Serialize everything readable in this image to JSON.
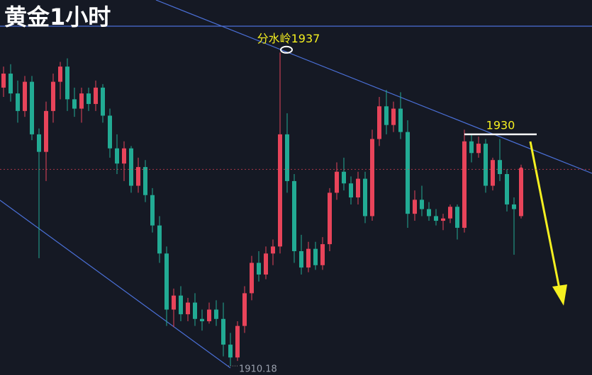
{
  "chart_data": {
    "type": "candlestick",
    "title": "黄金1小时",
    "up_color": "#e8445a",
    "down_color": "#22ab94",
    "ylim": [
      1909.4,
      1941.5
    ],
    "ohlc": [
      [
        1934.0,
        1935.8,
        1933.2,
        1935.2
      ],
      [
        1935.2,
        1936.0,
        1932.8,
        1933.5
      ],
      [
        1933.5,
        1934.6,
        1931.0,
        1932.0
      ],
      [
        1932.0,
        1935.0,
        1931.5,
        1934.5
      ],
      [
        1934.5,
        1935.0,
        1929.5,
        1930.0
      ],
      [
        1930.0,
        1930.5,
        1919.4,
        1928.5
      ],
      [
        1928.5,
        1932.8,
        1926.0,
        1932.0
      ],
      [
        1932.0,
        1935.2,
        1931.0,
        1934.5
      ],
      [
        1934.5,
        1936.2,
        1933.0,
        1935.8
      ],
      [
        1935.8,
        1936.5,
        1932.0,
        1933.0
      ],
      [
        1933.0,
        1934.0,
        1931.5,
        1932.2
      ],
      [
        1932.2,
        1934.0,
        1931.0,
        1933.5
      ],
      [
        1933.5,
        1934.0,
        1932.0,
        1932.6
      ],
      [
        1932.6,
        1934.6,
        1932.0,
        1934.0
      ],
      [
        1934.0,
        1934.3,
        1931.0,
        1931.6
      ],
      [
        1931.6,
        1932.2,
        1928.0,
        1928.8
      ],
      [
        1928.8,
        1930.0,
        1926.6,
        1927.5
      ],
      [
        1927.5,
        1929.4,
        1926.0,
        1928.8
      ],
      [
        1928.8,
        1929.0,
        1925.0,
        1925.6
      ],
      [
        1925.6,
        1928.0,
        1925.0,
        1927.2
      ],
      [
        1927.2,
        1927.8,
        1924.2,
        1924.8
      ],
      [
        1924.8,
        1925.4,
        1921.6,
        1922.2
      ],
      [
        1922.2,
        1923.0,
        1919.0,
        1919.8
      ],
      [
        1919.8,
        1920.4,
        1913.6,
        1915.0
      ],
      [
        1915.0,
        1916.8,
        1913.5,
        1916.2
      ],
      [
        1916.2,
        1917.0,
        1914.0,
        1914.6
      ],
      [
        1914.6,
        1916.0,
        1914.0,
        1915.6
      ],
      [
        1915.6,
        1916.4,
        1913.6,
        1914.2
      ],
      [
        1914.2,
        1915.0,
        1913.2,
        1914.0
      ],
      [
        1914.0,
        1915.6,
        1913.8,
        1915.0
      ],
      [
        1915.0,
        1915.8,
        1913.6,
        1914.2
      ],
      [
        1914.2,
        1915.6,
        1911.0,
        1912.0
      ],
      [
        1912.0,
        1913.0,
        1910.18,
        1910.9
      ],
      [
        1910.9,
        1914.0,
        1910.6,
        1913.6
      ],
      [
        1913.6,
        1917.0,
        1913.0,
        1916.4
      ],
      [
        1916.4,
        1919.6,
        1915.8,
        1919.0
      ],
      [
        1919.0,
        1920.0,
        1917.4,
        1918.0
      ],
      [
        1918.0,
        1920.4,
        1917.6,
        1919.8
      ],
      [
        1919.8,
        1921.0,
        1918.8,
        1920.4
      ],
      [
        1920.4,
        1937.0,
        1919.8,
        1930.0
      ],
      [
        1930.0,
        1931.8,
        1925.0,
        1926.0
      ],
      [
        1926.0,
        1926.6,
        1919.0,
        1920.0
      ],
      [
        1920.0,
        1921.4,
        1918.0,
        1918.6
      ],
      [
        1918.6,
        1920.8,
        1918.2,
        1920.2
      ],
      [
        1920.2,
        1920.8,
        1918.4,
        1918.8
      ],
      [
        1918.8,
        1921.2,
        1918.4,
        1920.6
      ],
      [
        1920.6,
        1925.4,
        1920.0,
        1925.0
      ],
      [
        1925.0,
        1927.6,
        1924.4,
        1926.8
      ],
      [
        1926.8,
        1928.0,
        1925.2,
        1925.8
      ],
      [
        1925.8,
        1926.4,
        1924.0,
        1924.6
      ],
      [
        1924.6,
        1926.8,
        1924.0,
        1926.2
      ],
      [
        1926.2,
        1926.8,
        1922.4,
        1923.0
      ],
      [
        1923.0,
        1930.4,
        1922.6,
        1929.6
      ],
      [
        1929.6,
        1933.2,
        1929.0,
        1932.4
      ],
      [
        1932.4,
        1933.8,
        1930.0,
        1930.8
      ],
      [
        1930.8,
        1932.8,
        1930.2,
        1932.2
      ],
      [
        1932.2,
        1933.6,
        1929.6,
        1930.2
      ],
      [
        1930.2,
        1931.2,
        1922.0,
        1923.2
      ],
      [
        1923.2,
        1925.2,
        1922.6,
        1924.4
      ],
      [
        1924.4,
        1925.6,
        1923.0,
        1923.6
      ],
      [
        1923.6,
        1924.2,
        1922.6,
        1923.0
      ],
      [
        1923.0,
        1923.6,
        1922.2,
        1922.6
      ],
      [
        1922.6,
        1923.2,
        1921.8,
        1922.8
      ],
      [
        1922.8,
        1924.0,
        1922.4,
        1923.8
      ],
      [
        1923.8,
        1924.0,
        1921.0,
        1922.0
      ],
      [
        1922.0,
        1930.4,
        1921.6,
        1929.4
      ],
      [
        1929.4,
        1930.0,
        1927.6,
        1928.4
      ],
      [
        1928.4,
        1929.8,
        1928.0,
        1929.2
      ],
      [
        1929.2,
        1929.6,
        1925.0,
        1925.6
      ],
      [
        1925.6,
        1928.0,
        1925.2,
        1927.8
      ],
      [
        1927.8,
        1929.6,
        1926.0,
        1926.6
      ],
      [
        1926.6,
        1927.0,
        1923.4,
        1924.0
      ],
      [
        1924.0,
        1924.6,
        1919.7,
        1923.6
      ],
      [
        1923.0,
        1927.4,
        1922.8,
        1927.0
      ]
    ],
    "annotations": [
      {
        "text": "分水岭1937",
        "value": 1937
      },
      {
        "text": "1930",
        "value": 1930
      },
      {
        "text": "1910.18",
        "value": 1910.18
      }
    ]
  }
}
